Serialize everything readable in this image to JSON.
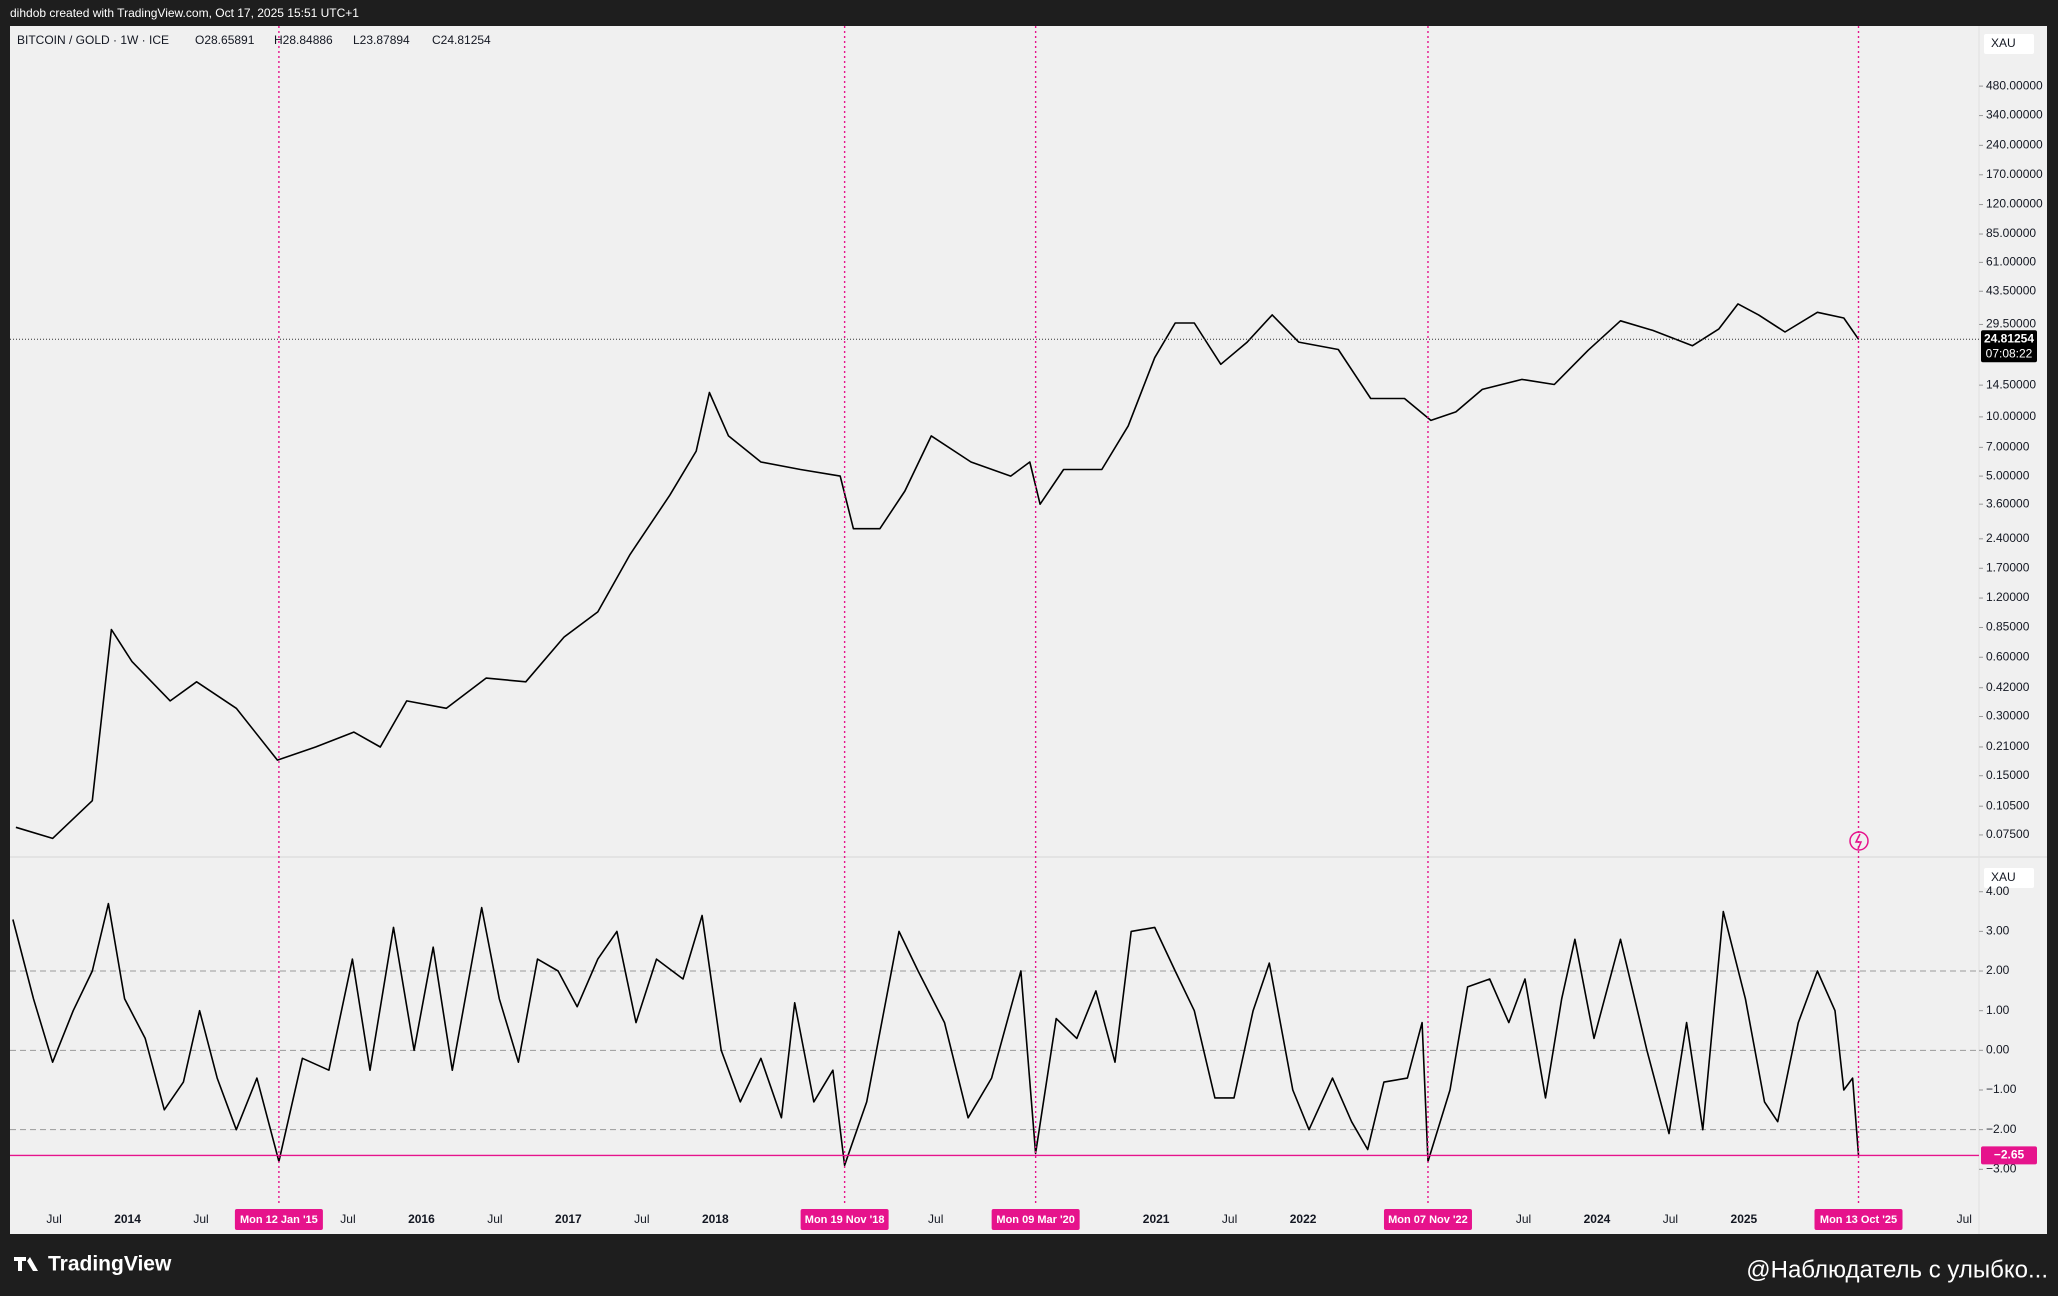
{
  "header": "dihdob created with TradingView.com, Oct 17, 2025 15:51 UTC+1",
  "footer": {
    "brand": "TradingView",
    "author": "@Наблюдатель с улыбко..."
  },
  "chart_data": [
    {
      "type": "line",
      "title": "BITCOIN / GOLD · 1W · ICE",
      "legend_values": [
        "O28.65891",
        "H28.84886",
        "L23.87894",
        "C24.81254"
      ],
      "axis_unit": "XAU",
      "log_scale": true,
      "color": "#000000",
      "xlim": [
        2013.2,
        2026.6
      ],
      "ylim": [
        0.06,
        970
      ],
      "yticks": [
        {
          "value": 480,
          "label": "480.00000"
        },
        {
          "value": 340,
          "label": "340.00000"
        },
        {
          "value": 240,
          "label": "240.00000"
        },
        {
          "value": 170,
          "label": "170.00000"
        },
        {
          "value": 120,
          "label": "120.00000"
        },
        {
          "value": 85,
          "label": "85.00000"
        },
        {
          "value": 61,
          "label": "61.00000"
        },
        {
          "value": 43.5,
          "label": "43.50000"
        },
        {
          "value": 29.5,
          "label": "29.50000"
        },
        {
          "value": 14.5,
          "label": "14.50000"
        },
        {
          "value": 10,
          "label": "10.00000"
        },
        {
          "value": 7,
          "label": "7.00000"
        },
        {
          "value": 5,
          "label": "5.00000"
        },
        {
          "value": 3.6,
          "label": "3.60000"
        },
        {
          "value": 2.4,
          "label": "2.40000"
        },
        {
          "value": 1.7,
          "label": "1.70000"
        },
        {
          "value": 1.2,
          "label": "1.20000"
        },
        {
          "value": 0.85,
          "label": "0.85000"
        },
        {
          "value": 0.6,
          "label": "0.60000"
        },
        {
          "value": 0.42,
          "label": "0.42000"
        },
        {
          "value": 0.3,
          "label": "0.30000"
        },
        {
          "value": 0.21,
          "label": "0.21000"
        },
        {
          "value": 0.15,
          "label": "0.15000"
        },
        {
          "value": 0.105,
          "label": "0.10500"
        },
        {
          "value": 0.075,
          "label": "0.07500"
        }
      ],
      "last_value": 24.81254,
      "countdown": "07:08:22",
      "x": [
        2013.24,
        2013.49,
        2013.76,
        2013.89,
        2014.03,
        2014.29,
        2014.47,
        2014.74,
        2015.02,
        2015.28,
        2015.54,
        2015.72,
        2015.9,
        2016.17,
        2016.44,
        2016.71,
        2016.97,
        2017.2,
        2017.42,
        2017.69,
        2017.87,
        2017.96,
        2018.09,
        2018.31,
        2018.58,
        2018.85,
        2018.94,
        2019.12,
        2019.29,
        2019.47,
        2019.74,
        2020.01,
        2020.14,
        2020.21,
        2020.37,
        2020.63,
        2020.81,
        2020.99,
        2021.13,
        2021.26,
        2021.44,
        2021.62,
        2021.79,
        2021.97,
        2022.24,
        2022.46,
        2022.69,
        2022.87,
        2023.04,
        2023.22,
        2023.49,
        2023.71,
        2023.94,
        2024.16,
        2024.38,
        2024.65,
        2024.83,
        2024.96,
        2025.1,
        2025.28,
        2025.5,
        2025.68,
        2025.78
      ],
      "values": [
        0.082,
        0.072,
        0.112,
        0.83,
        0.57,
        0.36,
        0.45,
        0.33,
        0.18,
        0.21,
        0.25,
        0.21,
        0.36,
        0.33,
        0.47,
        0.45,
        0.76,
        1.02,
        2.0,
        4.0,
        6.7,
        13.3,
        8.0,
        5.9,
        5.4,
        5.0,
        2.7,
        2.7,
        4.2,
        8.0,
        5.9,
        5.0,
        5.9,
        3.6,
        5.4,
        5.4,
        9.0,
        20,
        30,
        30,
        18.5,
        24,
        33,
        24,
        22,
        12.4,
        12.4,
        9.6,
        10.6,
        13.8,
        15.5,
        14.6,
        21.8,
        30.8,
        27.5,
        23,
        28,
        37.5,
        33,
        27,
        34,
        31.8,
        24.81254
      ]
    },
    {
      "type": "line",
      "axis_unit": "XAU",
      "color": "#000000",
      "xlim": [
        2013.2,
        2026.6
      ],
      "ylim": [
        -3.9,
        4.8
      ],
      "yticks": [
        {
          "value": 4,
          "label": "4.00"
        },
        {
          "value": 3,
          "label": "3.00"
        },
        {
          "value": 2,
          "label": "2.00"
        },
        {
          "value": 1,
          "label": "1.00"
        },
        {
          "value": 0,
          "label": "0.00"
        },
        {
          "value": -1,
          "label": "−1.00"
        },
        {
          "value": -2,
          "label": "−2.00"
        },
        {
          "value": -3,
          "label": "−3.00"
        }
      ],
      "levels": [
        2,
        0,
        -2
      ],
      "last_value": {
        "value": -2.65,
        "label": "−2.65"
      },
      "highlight_color": "#e6138c",
      "xticks": [
        {
          "value": 2013.5,
          "label": "Jul"
        },
        {
          "value": 2014,
          "label": "2014"
        },
        {
          "value": 2014.5,
          "label": "Jul"
        },
        {
          "value": 2015.5,
          "label": "Jul"
        },
        {
          "value": 2016,
          "label": "2016"
        },
        {
          "value": 2016.5,
          "label": "Jul"
        },
        {
          "value": 2017,
          "label": "2017"
        },
        {
          "value": 2017.5,
          "label": "Jul"
        },
        {
          "value": 2018,
          "label": "2018"
        },
        {
          "value": 2019.5,
          "label": "Jul"
        },
        {
          "value": 2021,
          "label": "2021"
        },
        {
          "value": 2021.5,
          "label": "Jul"
        },
        {
          "value": 2022,
          "label": "2022"
        },
        {
          "value": 2023.5,
          "label": "Jul"
        },
        {
          "value": 2024,
          "label": "2024"
        },
        {
          "value": 2024.5,
          "label": "Jul"
        },
        {
          "value": 2025,
          "label": "2025"
        },
        {
          "value": 2026.5,
          "label": "Jul"
        }
      ],
      "markers": [
        {
          "value": 2015.03,
          "label": "Mon 12 Jan '15"
        },
        {
          "value": 2018.88,
          "label": "Mon 19 Nov '18"
        },
        {
          "value": 2020.18,
          "label": "Mon 09 Mar '20"
        },
        {
          "value": 2022.85,
          "label": "Mon 07 Nov '22"
        },
        {
          "value": 2025.78,
          "label": "Mon 13 Oct '25"
        }
      ],
      "x": [
        2013.22,
        2013.36,
        2013.49,
        2013.63,
        2013.76,
        2013.87,
        2013.98,
        2014.12,
        2014.25,
        2014.38,
        2014.49,
        2014.61,
        2014.74,
        2014.88,
        2015.03,
        2015.19,
        2015.37,
        2015.53,
        2015.65,
        2015.81,
        2015.95,
        2016.08,
        2016.21,
        2016.41,
        2016.53,
        2016.66,
        2016.79,
        2016.93,
        2017.06,
        2017.2,
        2017.33,
        2017.46,
        2017.6,
        2017.78,
        2017.91,
        2018.04,
        2018.17,
        2018.31,
        2018.45,
        2018.54,
        2018.67,
        2018.8,
        2018.88,
        2019.03,
        2019.25,
        2019.38,
        2019.56,
        2019.72,
        2019.88,
        2020.08,
        2020.18,
        2020.32,
        2020.46,
        2020.59,
        2020.72,
        2020.83,
        2020.99,
        2021.13,
        2021.26,
        2021.4,
        2021.53,
        2021.66,
        2021.77,
        2021.93,
        2022.04,
        2022.2,
        2022.33,
        2022.44,
        2022.55,
        2022.71,
        2022.81,
        2022.85,
        2023.0,
        2023.12,
        2023.27,
        2023.4,
        2023.51,
        2023.65,
        2023.76,
        2023.85,
        2023.98,
        2024.16,
        2024.34,
        2024.49,
        2024.61,
        2024.72,
        2024.86,
        2025.01,
        2025.14,
        2025.23,
        2025.37,
        2025.5,
        2025.62,
        2025.68,
        2025.74,
        2025.78
      ],
      "values": [
        3.3,
        1.3,
        -0.3,
        1.0,
        2.0,
        3.7,
        1.3,
        0.3,
        -1.5,
        -0.8,
        1.0,
        -0.7,
        -2.0,
        -0.7,
        -2.8,
        -0.2,
        -0.5,
        2.3,
        -0.5,
        3.1,
        0,
        2.6,
        -0.5,
        3.6,
        1.3,
        -0.3,
        2.3,
        2.0,
        1.1,
        2.3,
        3.0,
        0.7,
        2.3,
        1.8,
        3.4,
        0,
        -1.3,
        -0.2,
        -1.7,
        1.2,
        -1.3,
        -0.5,
        -2.9,
        -1.3,
        3.0,
        2.0,
        0.7,
        -1.7,
        -0.7,
        2.0,
        -2.6,
        0.8,
        0.3,
        1.5,
        -0.3,
        3.0,
        3.1,
        2.0,
        1.0,
        -1.2,
        -1.2,
        1.0,
        2.2,
        -1.0,
        -2.0,
        -0.7,
        -1.8,
        -2.5,
        -0.8,
        -0.7,
        0.7,
        -2.8,
        -1.0,
        1.6,
        1.8,
        0.7,
        1.8,
        -1.2,
        1.3,
        2.8,
        0.3,
        2.8,
        0,
        -2.1,
        0.7,
        -2.0,
        3.5,
        1.3,
        -1.3,
        -1.8,
        0.7,
        2.0,
        1.0,
        -1.0,
        -0.7,
        -2.65
      ]
    }
  ]
}
